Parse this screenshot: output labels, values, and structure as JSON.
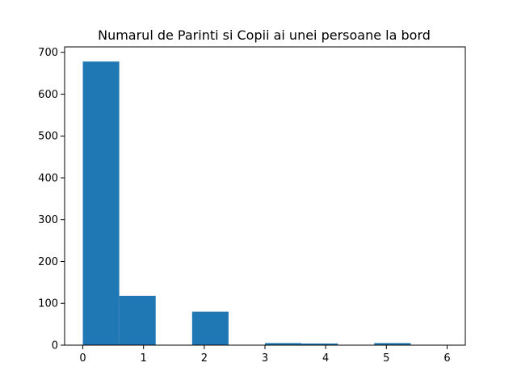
{
  "chart_data": {
    "type": "bar",
    "title": "Numarul de Parinti si Copii ai unei persoane la bord",
    "xlabel": "",
    "ylabel": "",
    "bar_color": "#1f77b4",
    "xlim": [
      -0.3,
      6.3
    ],
    "ylim": [
      0,
      713
    ],
    "bins": [
      {
        "start": 0.0,
        "end": 0.6,
        "value": 678
      },
      {
        "start": 0.6,
        "end": 1.2,
        "value": 118
      },
      {
        "start": 1.2,
        "end": 1.8,
        "value": 0
      },
      {
        "start": 1.8,
        "end": 2.4,
        "value": 80
      },
      {
        "start": 2.4,
        "end": 3.0,
        "value": 0
      },
      {
        "start": 3.0,
        "end": 3.6,
        "value": 5
      },
      {
        "start": 3.6,
        "end": 4.2,
        "value": 4
      },
      {
        "start": 4.2,
        "end": 4.8,
        "value": 0
      },
      {
        "start": 4.8,
        "end": 5.4,
        "value": 5
      },
      {
        "start": 5.4,
        "end": 6.0,
        "value": 1
      }
    ],
    "x_ticks": [
      "0",
      "1",
      "2",
      "3",
      "4",
      "5",
      "6"
    ],
    "y_ticks": [
      "0",
      "100",
      "200",
      "300",
      "400",
      "500",
      "600",
      "700"
    ],
    "grid": false,
    "legend": "none"
  }
}
